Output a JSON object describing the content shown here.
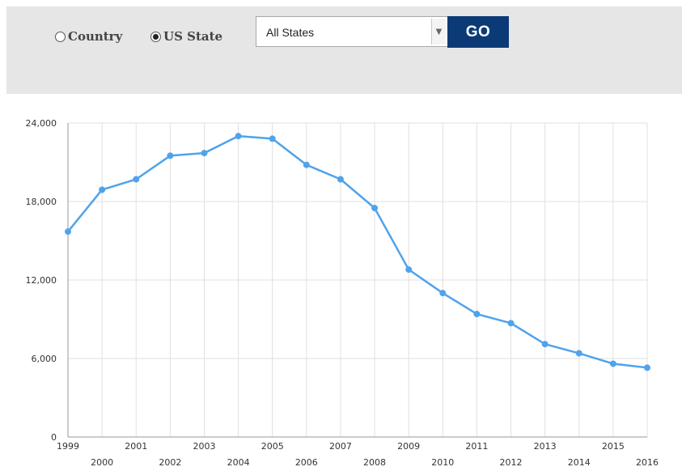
{
  "filter": {
    "options": [
      {
        "label": "Country",
        "selected": false
      },
      {
        "label": "US State",
        "selected": true
      }
    ],
    "select_value": "All States",
    "go_label": "GO"
  },
  "colors": {
    "filter_bar_bg": "#e6e6e6",
    "go_button_bg": "#0b3a77",
    "line": "#4fa3ec",
    "grid": "#e0e0e0"
  },
  "chart_data": {
    "type": "line",
    "x": [
      1999,
      2000,
      2001,
      2002,
      2003,
      2004,
      2005,
      2006,
      2007,
      2008,
      2009,
      2010,
      2011,
      2012,
      2013,
      2014,
      2015,
      2016
    ],
    "series": [
      {
        "values": [
          15700,
          18900,
          19700,
          21500,
          21700,
          23000,
          22800,
          20800,
          19700,
          17500,
          12800,
          11000,
          9400,
          8700,
          7100,
          6400,
          5600,
          5300
        ]
      }
    ],
    "ylim": [
      0,
      24000
    ],
    "yticks": [
      "0",
      "6,000",
      "12,000",
      "18,000",
      "24,000"
    ],
    "xtick_labels": [
      "1999",
      "2000",
      "2001",
      "2002",
      "2003",
      "2004",
      "2005",
      "2006",
      "2007",
      "2008",
      "2009",
      "2010",
      "2011",
      "2012",
      "2013",
      "2014",
      "2015",
      "2016"
    ],
    "xlabel": "",
    "ylabel": "",
    "title": "",
    "grid": true,
    "legend": "none"
  }
}
